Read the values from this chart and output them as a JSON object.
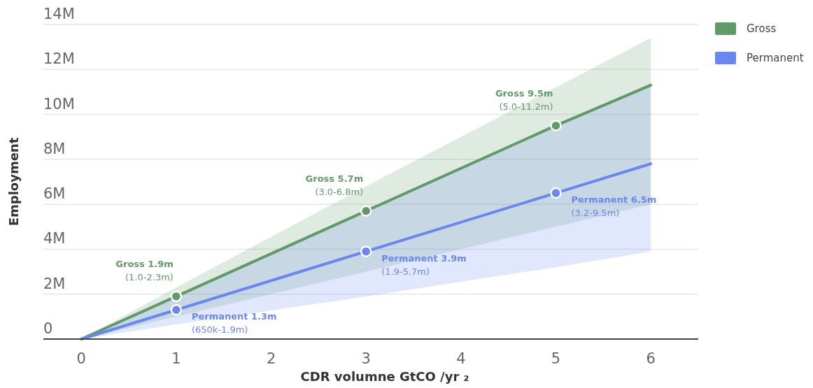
{
  "chart_data": {
    "type": "line",
    "xlabel": "CDR volumne GtCO /yr ₂",
    "ylabel": "Employment",
    "x": [
      0,
      1,
      3,
      5,
      6
    ],
    "series": [
      {
        "name": "Gross",
        "color": "#5f9a68",
        "values": [
          0,
          1.9,
          5.7,
          9.5,
          11.3
        ],
        "lower": [
          0,
          1.0,
          3.0,
          5.0,
          6.0
        ],
        "upper": [
          0,
          2.3,
          6.8,
          11.2,
          13.4
        ]
      },
      {
        "name": "Permanent",
        "color": "#6a86f0",
        "values": [
          0,
          1.3,
          3.9,
          6.5,
          7.8
        ],
        "lower": [
          0,
          0.65,
          1.9,
          3.2,
          3.9
        ],
        "upper": [
          0,
          1.9,
          5.7,
          9.5,
          11.4
        ]
      },
      {
        "type": "scatter",
        "color": "#5f9a68",
        "x": [
          1,
          3,
          5
        ],
        "values": [
          1.9,
          5.7,
          9.5
        ],
        "marker": "circle"
      },
      {
        "type": "scatter",
        "color": "#6a86f0",
        "x": [
          1,
          3,
          5
        ],
        "values": [
          1.3,
          3.9,
          6.5
        ],
        "marker": "circle"
      }
    ],
    "xlim": [
      -0.4,
      6.5
    ],
    "xticks": [
      0,
      1,
      2,
      3,
      4,
      5,
      6
    ],
    "ylim": [
      0,
      14
    ],
    "yticks": [
      {
        "value": 0,
        "label": "0"
      },
      {
        "value": 2,
        "label": "2M"
      },
      {
        "value": 4,
        "label": "4M"
      },
      {
        "value": 6,
        "label": "6M"
      },
      {
        "value": 8,
        "label": "8M"
      },
      {
        "value": 10,
        "label": "10M"
      },
      {
        "value": 12,
        "label": "12M"
      },
      {
        "value": 14,
        "label": "14M"
      }
    ],
    "grid": "y",
    "legend": "top right",
    "annotations": [
      {
        "text": "Gross 1.9m\n(1.0-2.3m)",
        "x": 1,
        "y": 1.9
      },
      {
        "text": "Gross 5.7m\n(3.0-6.8m)",
        "x": 3,
        "y": 5.7
      },
      {
        "text": "Gross 9.5m\n(5.0-11.2m)",
        "x": 5,
        "y": 9.5
      },
      {
        "text": "Permanent 1.3m\n(650k-1.9m)",
        "x": 1,
        "y": 1.3
      },
      {
        "text": "Permanent 3.9m\n(1.9-5.7m)",
        "x": 3,
        "y": 3.9
      },
      {
        "text": "Permanent 6.5m\n(3.2-9.5m)",
        "x": 5,
        "y": 6.5
      }
    ]
  }
}
